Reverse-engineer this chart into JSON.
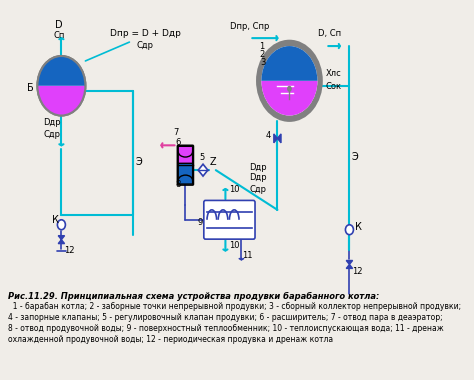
{
  "title": "",
  "caption_title": "Рис.11.29. Принципиальная схема устройства продувки барабанного котла:",
  "caption_lines": [
    "  1 - барабан котла; 2 - заборные точки непрерывной продувки; 3 - сборный коллектор непрерывной продувки;",
    "4 - запорные клапаны; 5 - регулировочный клапан продувки; 6 - расширитель; 7 - отвод пара в деаэратор;",
    "8 - отвод продувочной воды; 9 - поверхностный теплообменник; 10 - теплоиспускающая вода; 11 - дренаж",
    "охлажденной продувочной воды; 12 - периодическая продувка и дренаж котла"
  ],
  "bg_color": "#f0ede8",
  "line_color_cyan": "#00bcd4",
  "line_color_blue": "#3040b0",
  "line_color_pink": "#e040a0",
  "drum_fill_top": "#e040fb",
  "drum_fill_bot": "#1565c0",
  "drum_border": "#808080"
}
